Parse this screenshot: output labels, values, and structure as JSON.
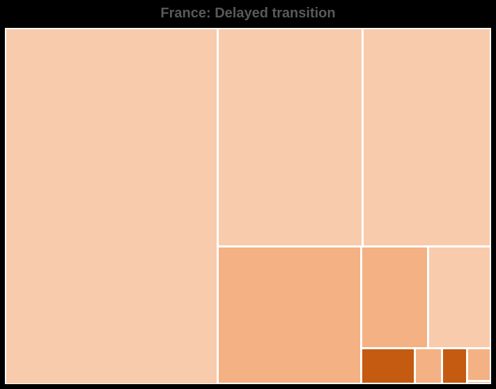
{
  "chart_data": {
    "type": "treemap",
    "title": "France: Delayed transition",
    "colors": {
      "light": "#f8cbad",
      "medium": "#f4b183",
      "dark": "#c55a11"
    },
    "items": [
      {
        "value": 154000,
        "shade": "light"
      },
      {
        "value": 64000,
        "shade": "light"
      },
      {
        "value": 57000,
        "shade": "light"
      },
      {
        "value": 40100,
        "shade": "medium"
      },
      {
        "value": 13700,
        "shade": "medium"
      },
      {
        "value": 13060,
        "shade": "light"
      },
      {
        "value": 3920,
        "shade": "dark"
      },
      {
        "value": 2010,
        "shade": "medium"
      },
      {
        "value": 1810,
        "shade": "dark"
      },
      {
        "value": 1640,
        "shade": "medium"
      },
      {
        "value": 150,
        "shade": "medium"
      }
    ]
  }
}
